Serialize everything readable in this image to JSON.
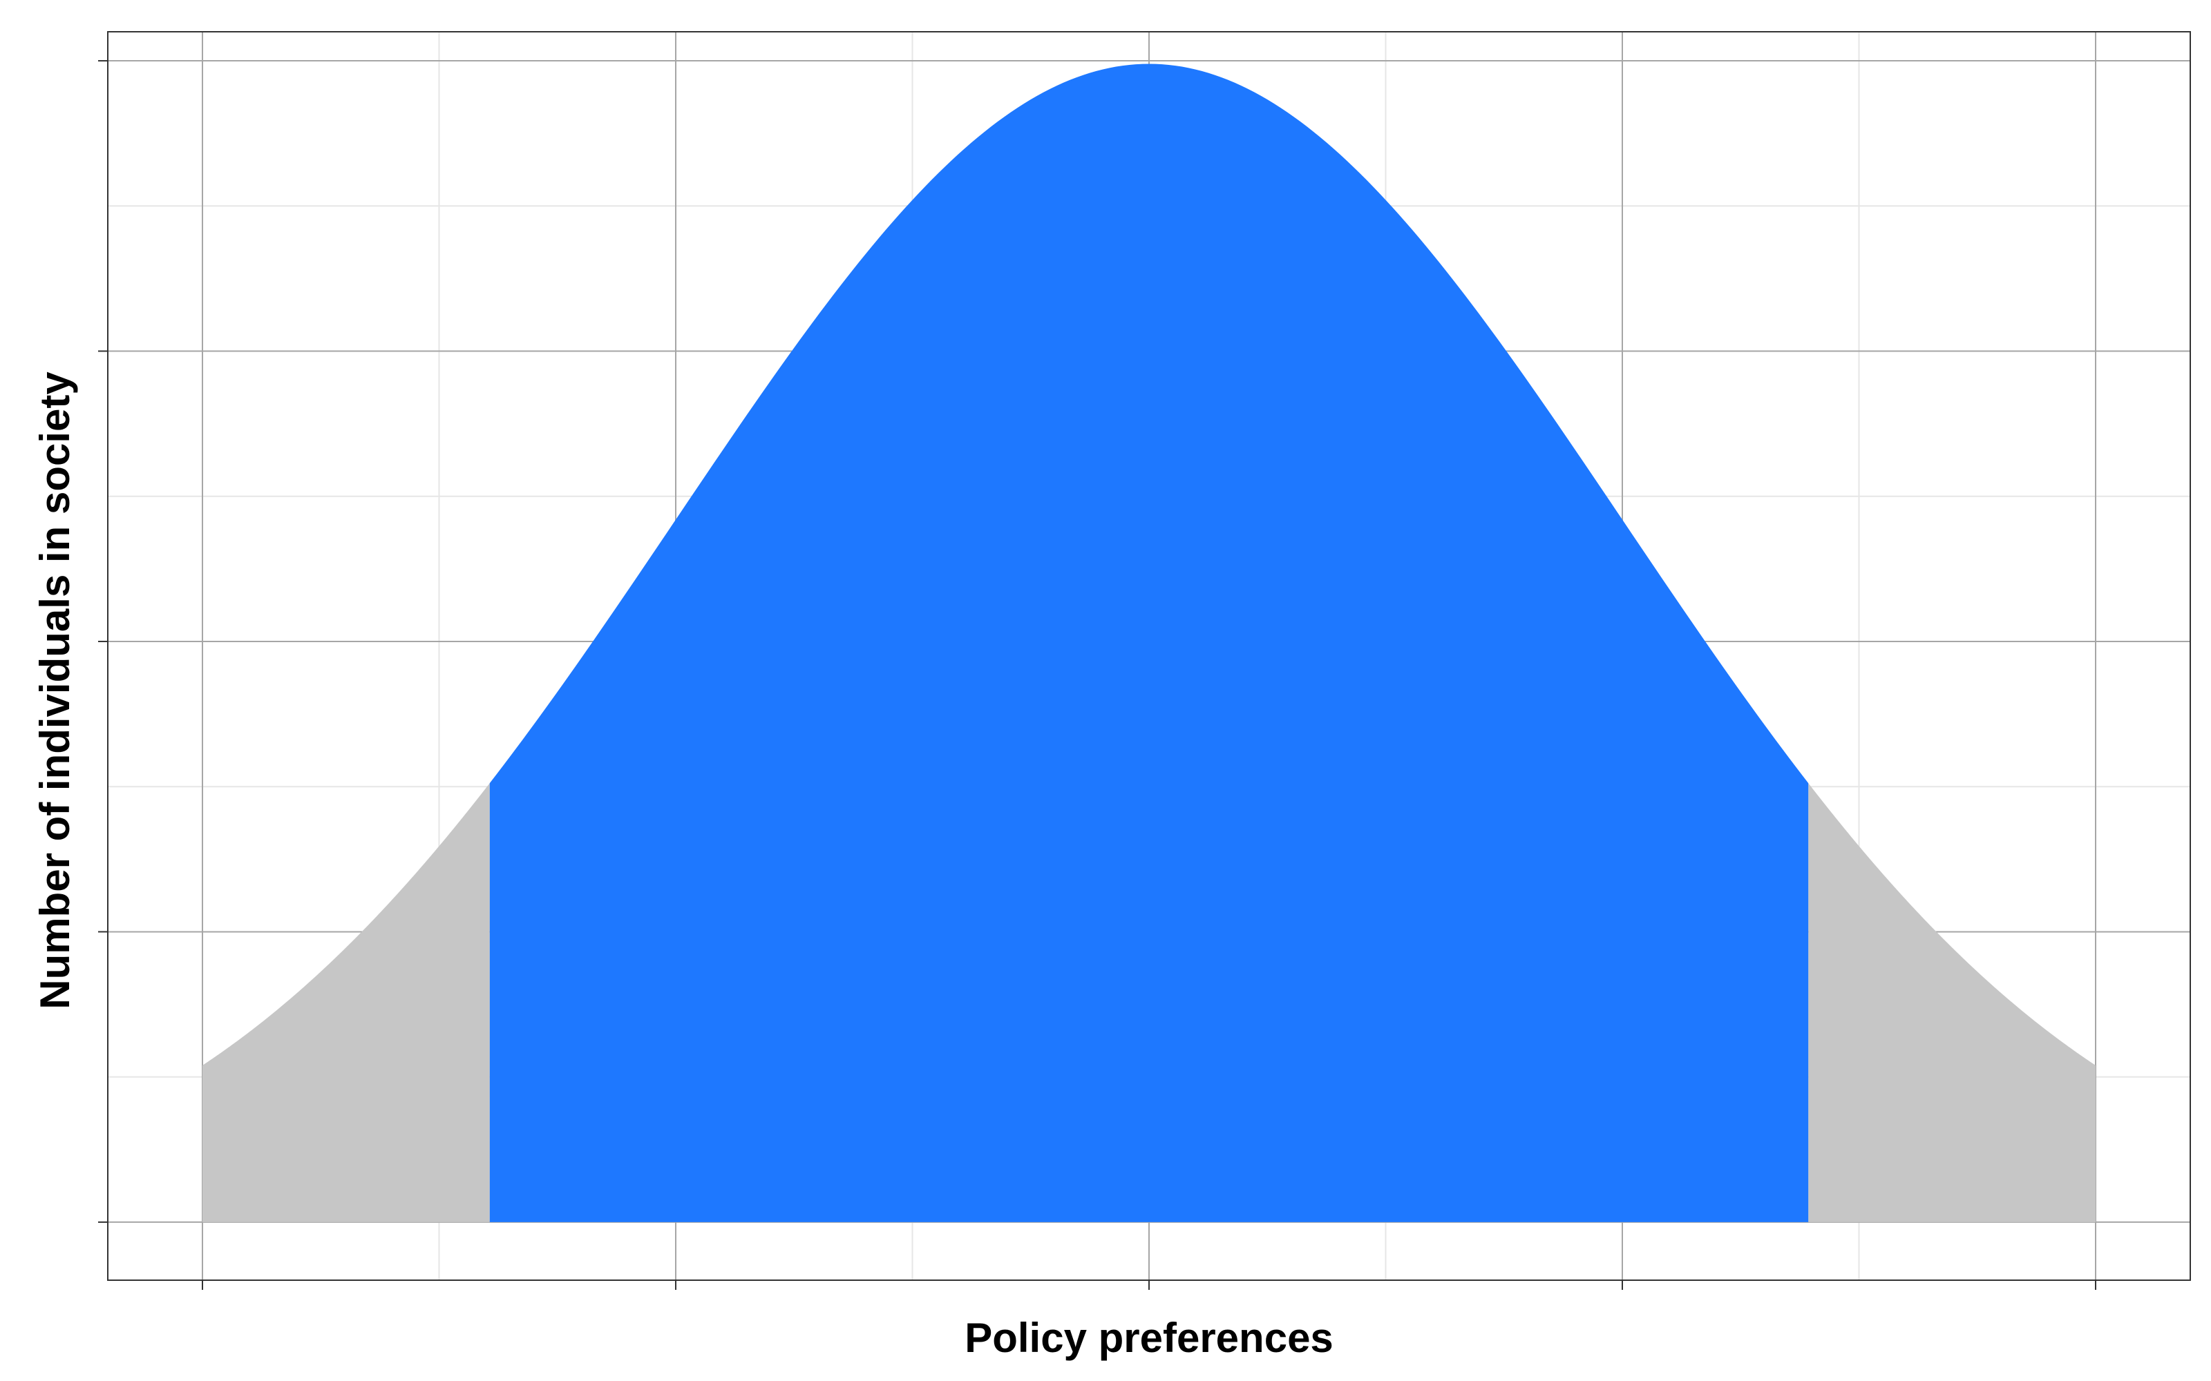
{
  "chart_data": {
    "type": "area",
    "title": "",
    "xlabel": "Policy preferences",
    "ylabel": "Number of individuals in society",
    "distribution": "normal",
    "mean": 0,
    "sd": 1,
    "xlim": [
      -2.2,
      2.2
    ],
    "ylim": [
      -0.02,
      0.41
    ],
    "x_range": [
      -2,
      2
    ],
    "highlight_range": [
      -1.393,
      1.393
    ],
    "x_major_ticks": [
      -2,
      -1,
      0,
      1,
      2
    ],
    "x_minor_ticks": [
      -1.5,
      -0.5,
      0.5,
      1.5
    ],
    "y_major_ticks": [
      0,
      0.1,
      0.2,
      0.3,
      0.4
    ],
    "y_minor_ticks": [
      0.05,
      0.15,
      0.25,
      0.35
    ],
    "x_tick_labels": [],
    "y_tick_labels": [],
    "grid": true,
    "legend": "none",
    "series": [
      {
        "values": "tails",
        "color": "#c6c6c6"
      },
      {
        "values": "center",
        "color": "#1e78ff"
      }
    ],
    "colors": {
      "tails": "#c6c6c6",
      "center": "#1e78ff",
      "major_grid": "#a6a6a6",
      "minor_grid": "#e6e6e6",
      "border": "#333333"
    }
  }
}
